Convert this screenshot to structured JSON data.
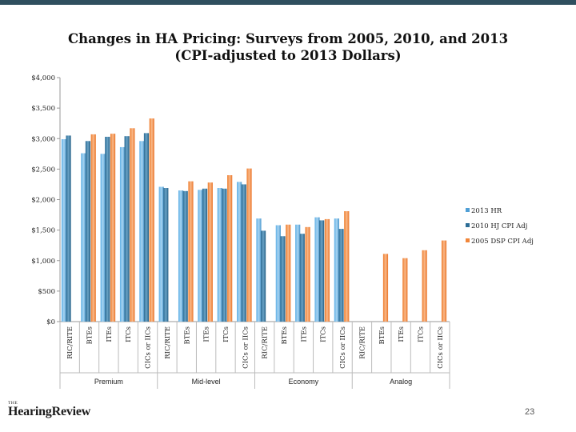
{
  "slide": {
    "page_number": "23",
    "logo_text": "HearingReview",
    "logo_small": "THE"
  },
  "chart_data": {
    "type": "bar",
    "title": [
      "Changes in HA Pricing: Surveys from 2005, 2010, and 2013",
      "(CPI-adjusted to 2013 Dollars)"
    ],
    "xlabel": "",
    "ylabel": "",
    "ylim": [
      0,
      4000
    ],
    "y_ticks": [
      "$0",
      "$500",
      "$1,000",
      "$1,500",
      "$2,000",
      "$2,500",
      "$3,000",
      "$3,500",
      "$4,000"
    ],
    "grid": false,
    "legend_position": "right",
    "groups": [
      {
        "name": "Premium",
        "categories": [
          "RIC/RITE",
          "BTEs",
          "ITEs",
          "ITCs",
          "CICs or IICs"
        ]
      },
      {
        "name": "Mid-level",
        "categories": [
          "RIC/RITE",
          "BTEs",
          "ITEs",
          "ITCs",
          "CICs or IICs"
        ]
      },
      {
        "name": "Economy",
        "categories": [
          "RIC/RITE",
          "BTEs",
          "ITEs",
          "ITCs",
          "CICs or IICs"
        ]
      },
      {
        "name": "Analog",
        "categories": [
          "RIC/RITE",
          "BTEs",
          "ITEs",
          "ITCs",
          "CICs or IICs"
        ]
      }
    ],
    "series": [
      {
        "name": "2013 HR",
        "color": "#4f9fd6",
        "values": [
          2990,
          2760,
          2750,
          2860,
          2960,
          2210,
          2150,
          2160,
          2190,
          2290,
          1690,
          1580,
          1590,
          1710,
          1690,
          null,
          null,
          null,
          null,
          null
        ]
      },
      {
        "name": "2010 HJ CPI Adj",
        "color": "#2c6d96",
        "values": [
          3050,
          2960,
          3030,
          3040,
          3090,
          2190,
          2140,
          2180,
          2180,
          2250,
          1490,
          1400,
          1440,
          1660,
          1520,
          null,
          null,
          null,
          null,
          null
        ]
      },
      {
        "name": "2005 DSP CPI Adj",
        "color": "#f1863a",
        "values": [
          null,
          3070,
          3080,
          3170,
          3330,
          null,
          2300,
          2280,
          2400,
          2510,
          null,
          1590,
          1550,
          1680,
          1810,
          null,
          1110,
          1040,
          1170,
          1330
        ]
      }
    ]
  }
}
